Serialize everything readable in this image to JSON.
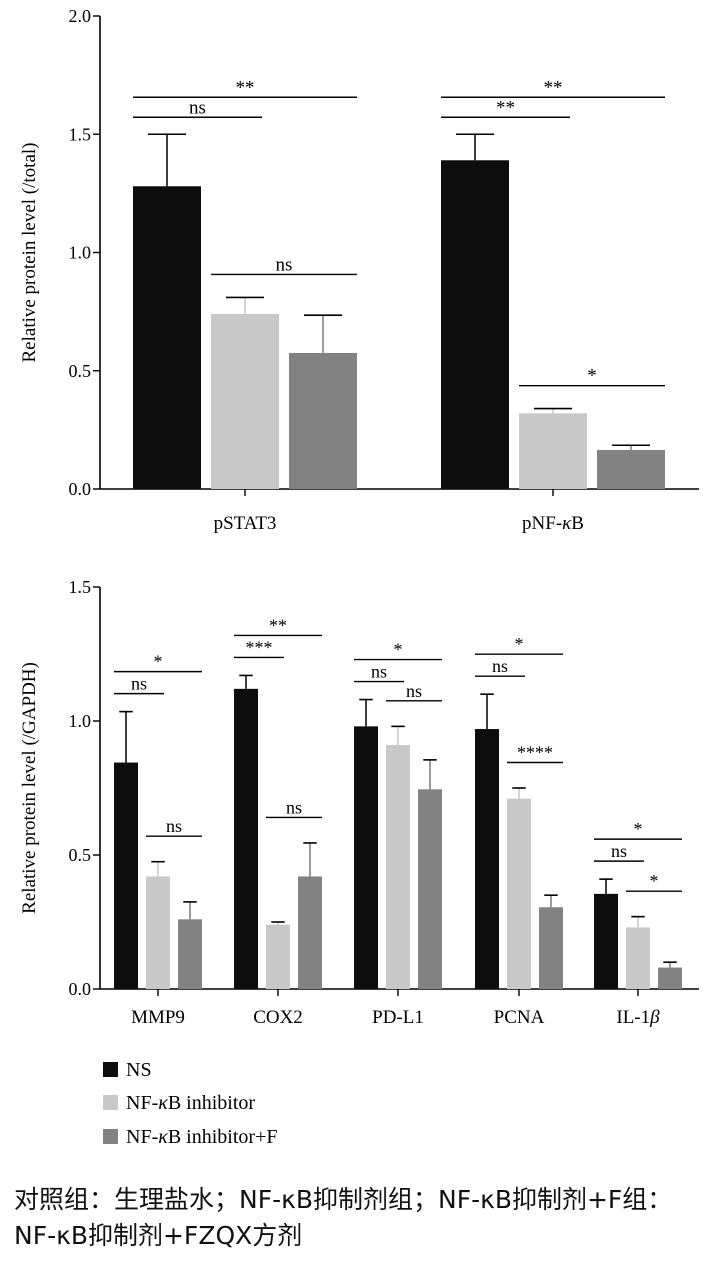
{
  "chart_data": [
    {
      "type": "bar",
      "ylabel": "Relative protein level (/total)",
      "ylim": [
        0,
        2.0
      ],
      "yticks": [
        "0.0",
        "0.5",
        "1.0",
        "1.5",
        "2.0"
      ],
      "categories": [
        "pSTAT3",
        "pNF-κB"
      ],
      "series": [
        {
          "name": "NS",
          "color": "#0d0d0d",
          "values": [
            1.28,
            1.39
          ],
          "errors": [
            0.22,
            0.11
          ]
        },
        {
          "name": "NF-κB inhibitor",
          "color": "#c8c8c8",
          "values": [
            0.74,
            0.32
          ],
          "errors": [
            0.07,
            0.02
          ]
        },
        {
          "name": "NF-κB inhibitor+F",
          "color": "#828282",
          "values": [
            0.575,
            0.165
          ],
          "errors": [
            0.16,
            0.02
          ]
        }
      ],
      "significance": [
        {
          "category": 0,
          "from": 0,
          "to": 1,
          "label": "ns"
        },
        {
          "category": 0,
          "from": 0,
          "to": 2,
          "label": "**"
        },
        {
          "category": 0,
          "from": 1,
          "to": 2,
          "label": "ns"
        },
        {
          "category": 1,
          "from": 0,
          "to": 1,
          "label": "**"
        },
        {
          "category": 1,
          "from": 0,
          "to": 2,
          "label": "**"
        },
        {
          "category": 1,
          "from": 1,
          "to": 2,
          "label": "*"
        }
      ]
    },
    {
      "type": "bar",
      "ylabel": "Relative protein level (/GAPDH)",
      "ylim": [
        0,
        1.5
      ],
      "yticks": [
        "0.0",
        "0.5",
        "1.0",
        "1.5"
      ],
      "categories": [
        "MMP9",
        "COX2",
        "PD-L1",
        "PCNA",
        "IL-1β"
      ],
      "series": [
        {
          "name": "NS",
          "color": "#0d0d0d",
          "values": [
            0.845,
            1.12,
            0.98,
            0.97,
            0.355
          ],
          "errors": [
            0.19,
            0.05,
            0.1,
            0.13,
            0.055
          ]
        },
        {
          "name": "NF-κB inhibitor",
          "color": "#c8c8c8",
          "values": [
            0.42,
            0.24,
            0.91,
            0.71,
            0.23
          ],
          "errors": [
            0.055,
            0.01,
            0.07,
            0.04,
            0.04
          ]
        },
        {
          "name": "NF-κB inhibitor+F",
          "color": "#828282",
          "values": [
            0.26,
            0.42,
            0.745,
            0.305,
            0.08
          ],
          "errors": [
            0.065,
            0.125,
            0.11,
            0.045,
            0.02
          ]
        }
      ],
      "significance": [
        {
          "category": 0,
          "from": 0,
          "to": 1,
          "label": "ns"
        },
        {
          "category": 0,
          "from": 0,
          "to": 2,
          "label": "*"
        },
        {
          "category": 0,
          "from": 1,
          "to": 2,
          "label": "ns"
        },
        {
          "category": 1,
          "from": 0,
          "to": 1,
          "label": "***"
        },
        {
          "category": 1,
          "from": 0,
          "to": 2,
          "label": "**"
        },
        {
          "category": 1,
          "from": 1,
          "to": 2,
          "label": "ns"
        },
        {
          "category": 2,
          "from": 0,
          "to": 1,
          "label": "ns"
        },
        {
          "category": 2,
          "from": 0,
          "to": 2,
          "label": "*"
        },
        {
          "category": 2,
          "from": 1,
          "to": 2,
          "label": "ns"
        },
        {
          "category": 3,
          "from": 0,
          "to": 1,
          "label": "ns"
        },
        {
          "category": 3,
          "from": 0,
          "to": 2,
          "label": "*"
        },
        {
          "category": 3,
          "from": 1,
          "to": 2,
          "label": "****"
        },
        {
          "category": 4,
          "from": 0,
          "to": 1,
          "label": "ns"
        },
        {
          "category": 4,
          "from": 0,
          "to": 2,
          "label": "*"
        },
        {
          "category": 4,
          "from": 1,
          "to": 2,
          "label": "*"
        }
      ]
    }
  ],
  "legend": [
    {
      "label": "NS",
      "color": "#0d0d0d"
    },
    {
      "label": "NF-κB inhibitor",
      "color": "#c8c8c8"
    },
    {
      "label": "NF-κB inhibitor+F",
      "color": "#828282"
    }
  ],
  "caption": "对照组：生理盐水；NF-κB抑制剂组；NF-κB抑制剂+F组：NF-κB抑制剂+FZQX方剂"
}
